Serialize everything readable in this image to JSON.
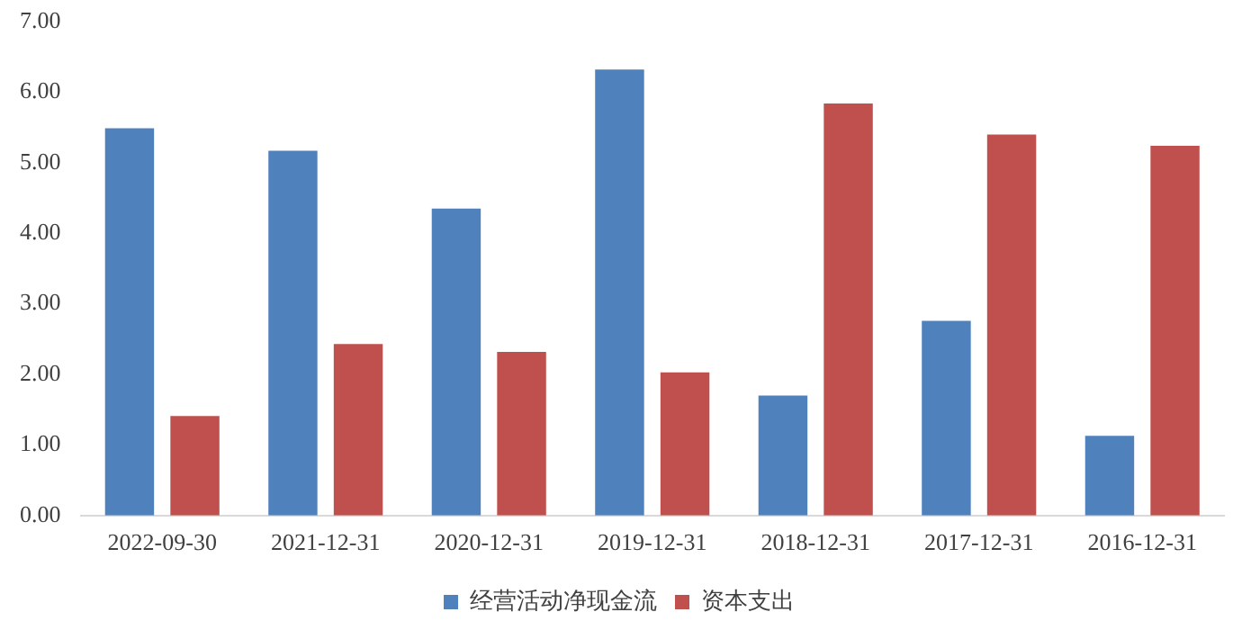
{
  "chart_data": {
    "type": "bar",
    "categories": [
      "2022-09-30",
      "2021-12-31",
      "2020-12-31",
      "2019-12-31",
      "2018-12-31",
      "2017-12-31",
      "2016-12-31"
    ],
    "series": [
      {
        "name": "经营活动净现金流",
        "color": "#4f81bd",
        "values": [
          5.49,
          5.17,
          4.35,
          6.32,
          1.7,
          2.76,
          1.13
        ]
      },
      {
        "name": "资本支出",
        "color": "#c0504d",
        "values": [
          1.41,
          2.43,
          2.32,
          2.03,
          5.84,
          5.4,
          5.24
        ]
      }
    ],
    "ylim": [
      0,
      7
    ],
    "yticks": [
      {
        "value": 0,
        "label": "0.00"
      },
      {
        "value": 1,
        "label": "1.00"
      },
      {
        "value": 2,
        "label": "2.00"
      },
      {
        "value": 3,
        "label": "3.00"
      },
      {
        "value": 4,
        "label": "4.00"
      },
      {
        "value": 5,
        "label": "5.00"
      },
      {
        "value": 6,
        "label": "6.00"
      },
      {
        "value": 7,
        "label": "7.00"
      }
    ],
    "grid": false,
    "legend": "bottom"
  }
}
